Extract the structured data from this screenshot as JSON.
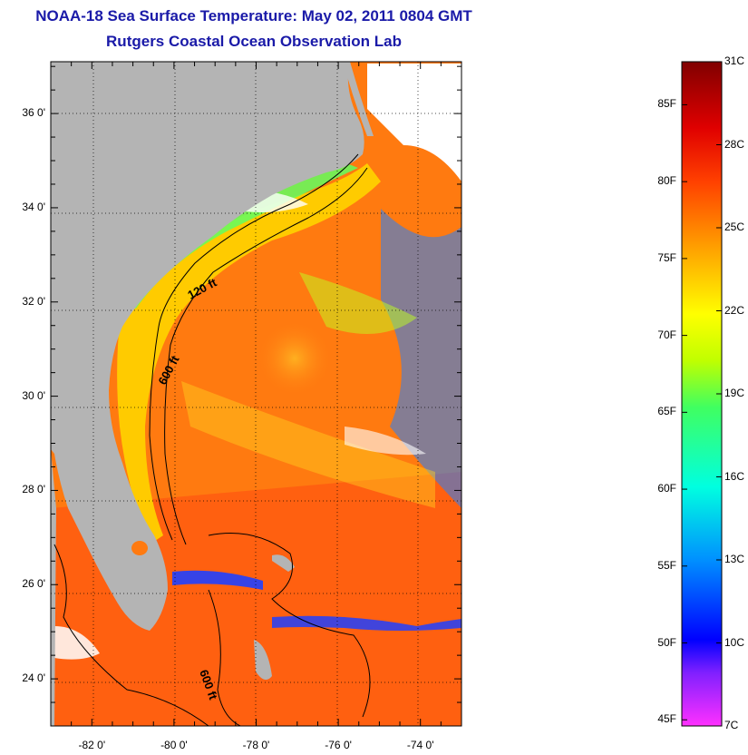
{
  "header": {
    "title": "NOAA-18 Sea Surface Temperature:  May 02, 2011 0804 GMT",
    "subtitle": "Rutgers Coastal Ocean Observation Lab"
  },
  "map": {
    "lat_ticks": [
      "36 0'",
      "34 0'",
      "32 0'",
      "30 0'",
      "28 0'",
      "26 0'",
      "24 0'"
    ],
    "lon_ticks": [
      "-82 0'",
      "-80 0'",
      "-78 0'",
      "-76 0'",
      "-74 0'"
    ],
    "lat_values": [
      36,
      34,
      32,
      30,
      28,
      26,
      24
    ],
    "lon_values": [
      -82,
      -80,
      -78,
      -76,
      -74
    ],
    "lat_range": [
      23,
      37.1
    ],
    "lon_range": [
      -83,
      -73
    ],
    "contours": [
      {
        "label": "120 ft"
      },
      {
        "label": "600 ft"
      },
      {
        "label": "600 ft"
      }
    ],
    "colors": {
      "land": "#b4b4b4",
      "cloud": "#ffffff",
      "water_warm": "#ff7a10",
      "water_core": "#ff5010",
      "water_shelf": "#ffd000",
      "water_cool": "#1060ff"
    }
  },
  "colorbar": {
    "fahrenheit_labels": [
      "85F",
      "80F",
      "75F",
      "70F",
      "65F",
      "60F",
      "55F",
      "50F",
      "45F"
    ],
    "fahrenheit_values": [
      85,
      80,
      75,
      70,
      65,
      60,
      55,
      50,
      45
    ],
    "celsius_labels": [
      "31C",
      "28C",
      "25C",
      "22C",
      "19C",
      "16C",
      "13C",
      "10C",
      "7C"
    ],
    "celsius_values": [
      31,
      28,
      25,
      22,
      19,
      16,
      13,
      10,
      7
    ],
    "range_c": [
      7,
      31
    ],
    "stops": [
      "#ff30ff",
      "#8020ff",
      "#0000ff",
      "#0090ff",
      "#00ffe0",
      "#40ff60",
      "#c0ff00",
      "#ffff00",
      "#ffa000",
      "#ff4000",
      "#e00000",
      "#800000"
    ]
  }
}
